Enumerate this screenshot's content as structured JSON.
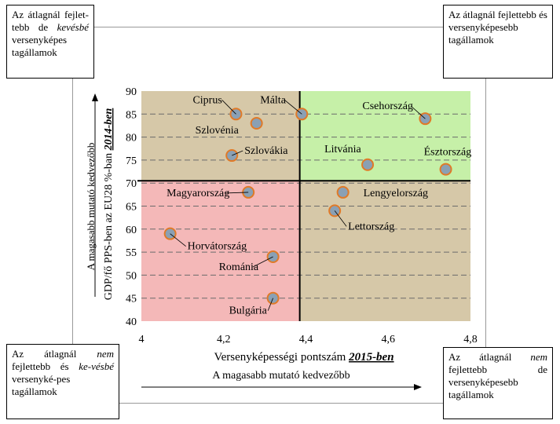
{
  "corner_boxes": {
    "top_left": [
      "Az átlagnál fejlet-",
      "tebb de ",
      "kevésbé",
      " versenyképes tagállamok"
    ],
    "top_right": [
      "Az átlagnál fejlettebb és versenyképesebb tagállamok"
    ],
    "bottom_left": [
      "Az átlagnál ",
      "nem",
      " fejlettebb és ",
      "ke-vésbé",
      " versenyké-pes tagállamok"
    ],
    "bottom_right": [
      "Az átlagnál ",
      "nem",
      " fejlettebb de versenyképesebb tagállamok"
    ]
  },
  "arrows": {
    "bottom_label": "A magasabb mutató kedvezőbb",
    "left_label": "A magasabb mutató kedvezőbb"
  },
  "colors": {
    "top_left_quadrant": "#d6c8a8",
    "top_right_quadrant": "#c6f0a8",
    "bottom_left_quadrant": "#f4b8b8",
    "bottom_right_quadrant": "#d6c8a8",
    "point_fill": "#8aa0b4",
    "point_stroke": "#e07a28"
  },
  "chart_data": {
    "type": "scatter",
    "xlabel": "Versenyképességi pontszám",
    "xlabel_emph": "2015-ben",
    "ylabel": "GDP/fő PPS-ben az EU28 %-ban",
    "ylabel_emph": "2014-ben",
    "xlim": [
      4,
      4.8
    ],
    "ylim": [
      40,
      90
    ],
    "xticks": [
      "4",
      "4,2",
      "4,4",
      "4,6",
      "4,8"
    ],
    "yticks": [
      "40",
      "45",
      "50",
      "55",
      "60",
      "65",
      "70",
      "75",
      "80",
      "85",
      "90"
    ],
    "x_divider": 4.385,
    "y_divider": 70.5,
    "points": [
      {
        "label": "Ciprus",
        "x": 4.23,
        "y": 85
      },
      {
        "label": "Málta",
        "x": 4.39,
        "y": 85
      },
      {
        "label": "Csehország",
        "x": 4.69,
        "y": 84
      },
      {
        "label": "Szlovénia",
        "x": 4.28,
        "y": 83
      },
      {
        "label": "Szlovákia",
        "x": 4.22,
        "y": 76
      },
      {
        "label": "Litvánia",
        "x": 4.55,
        "y": 74
      },
      {
        "label": "Észtország",
        "x": 4.74,
        "y": 73
      },
      {
        "label": "Magyarország",
        "x": 4.26,
        "y": 68
      },
      {
        "label": "Lengyelország",
        "x": 4.49,
        "y": 68
      },
      {
        "label": "Lettország",
        "x": 4.47,
        "y": 64
      },
      {
        "label": "Horvátország",
        "x": 4.07,
        "y": 59
      },
      {
        "label": "Románia",
        "x": 4.32,
        "y": 54
      },
      {
        "label": "Bulgária",
        "x": 4.32,
        "y": 45
      }
    ]
  }
}
